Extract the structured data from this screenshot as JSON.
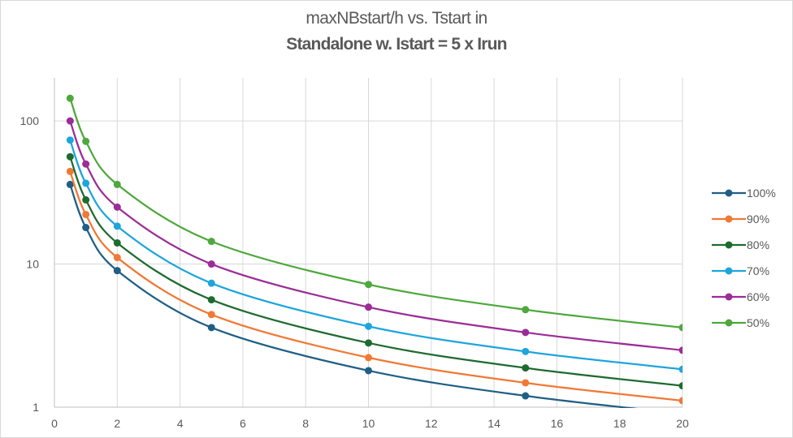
{
  "chart_data": {
    "type": "line",
    "title": "maxNBstart/h vs. Tstart in",
    "subtitle": "Standalone w. Istart = 5 x Irun",
    "xlabel": "",
    "ylabel": "",
    "x_scale": "linear",
    "y_scale": "log",
    "xlim": [
      0,
      20
    ],
    "ylim": [
      1,
      200
    ],
    "x_ticks": [
      "0",
      "2",
      "4",
      "6",
      "8",
      "10",
      "12",
      "14",
      "16",
      "18",
      "20"
    ],
    "y_ticks": [
      "1",
      "10",
      "100"
    ],
    "grid": true,
    "legend_position": "right",
    "x": [
      0.5,
      1,
      2,
      5,
      10,
      15,
      20
    ],
    "series": [
      {
        "name": "100%",
        "color": "#1f5f85",
        "values": [
          36,
          18,
          9,
          3.6,
          1.8,
          1.2,
          0.9
        ]
      },
      {
        "name": "90%",
        "color": "#f07935",
        "values": [
          44.4,
          22.2,
          11.1,
          4.44,
          2.22,
          1.48,
          1.11
        ]
      },
      {
        "name": "80%",
        "color": "#1e6b2f",
        "values": [
          56.25,
          28.1,
          14.06,
          5.63,
          2.81,
          1.88,
          1.41
        ]
      },
      {
        "name": "70%",
        "color": "#1ea5dc",
        "values": [
          73.5,
          36.7,
          18.4,
          7.35,
          3.67,
          2.45,
          1.84
        ]
      },
      {
        "name": "60%",
        "color": "#9b2d96",
        "values": [
          100,
          50,
          25,
          10,
          5,
          3.33,
          2.5
        ]
      },
      {
        "name": "50%",
        "color": "#4ea83d",
        "values": [
          144,
          72,
          36,
          14.4,
          7.2,
          4.8,
          3.6
        ]
      }
    ]
  }
}
